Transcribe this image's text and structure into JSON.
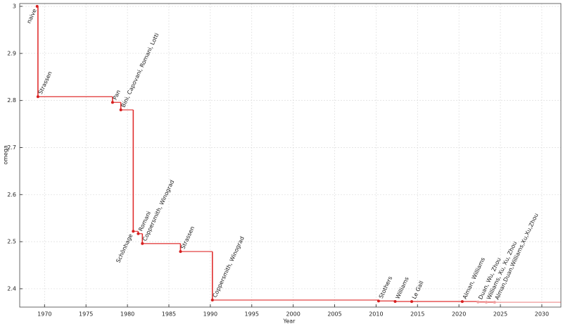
{
  "chart_data": {
    "type": "step",
    "x_label": "Year",
    "y_label": "omega",
    "x": [
      1969.1,
      1969.2,
      1978.2,
      1979.2,
      1980.7,
      1981.3,
      1981.8,
      1986.4,
      1990.25,
      2010.3,
      2012.3,
      2014.3,
      2020.4,
      2022.3,
      2023.3,
      2024.3
    ],
    "values": [
      3,
      2.808,
      2.796,
      2.78,
      2.522,
      2.517,
      2.496,
      2.479,
      2.376,
      2.374,
      2.3729,
      2.3728639,
      2.3728596,
      2.371866,
      2.371552,
      2.371339
    ],
    "point_labels": [
      "naive",
      "Strassen",
      "Pan",
      "Bini, Capovani, Romani, Lotti",
      "Schönhage",
      "Romani",
      "Coppersmith, Winograd",
      "Strassen",
      "Coppersmith, Winograd",
      "Stothers",
      "Williams",
      "Le Gall",
      "Alman, Williams",
      "Duan, Wu, Zhou",
      "Williams, Xu, Xu, Zhou",
      "Alman,Duan,Williams,Xu,Xu,Zhou"
    ],
    "point_colors": [
      "#d62020",
      "#d62020",
      "#d62020",
      "#d62020",
      "#d62020",
      "#d62020",
      "#d62020",
      "#d62020",
      "#d62020",
      "#d62020",
      "#d62020",
      "#d62020",
      "#d62020",
      "#f0a0a0",
      "#f0a0a0",
      "#f0a0a0"
    ],
    "label_colors": [
      "#222",
      "#222",
      "#222",
      "#222",
      "#222",
      "#222",
      "#222",
      "#222",
      "#222",
      "#222",
      "#222",
      "#222",
      "#222",
      "#999",
      "#999",
      "#999"
    ],
    "line_color": "#e03030",
    "xlim": [
      1967,
      2032.3
    ],
    "ylim": [
      2.361,
      3.006
    ],
    "xticks": [
      1970,
      1975,
      1980,
      1985,
      1990,
      1995,
      2000,
      2005,
      2010,
      2015,
      2020,
      2025,
      2030
    ],
    "yticks": [
      2.4,
      2.5,
      2.6,
      2.7,
      2.8,
      2.9,
      3
    ],
    "grid": true
  }
}
